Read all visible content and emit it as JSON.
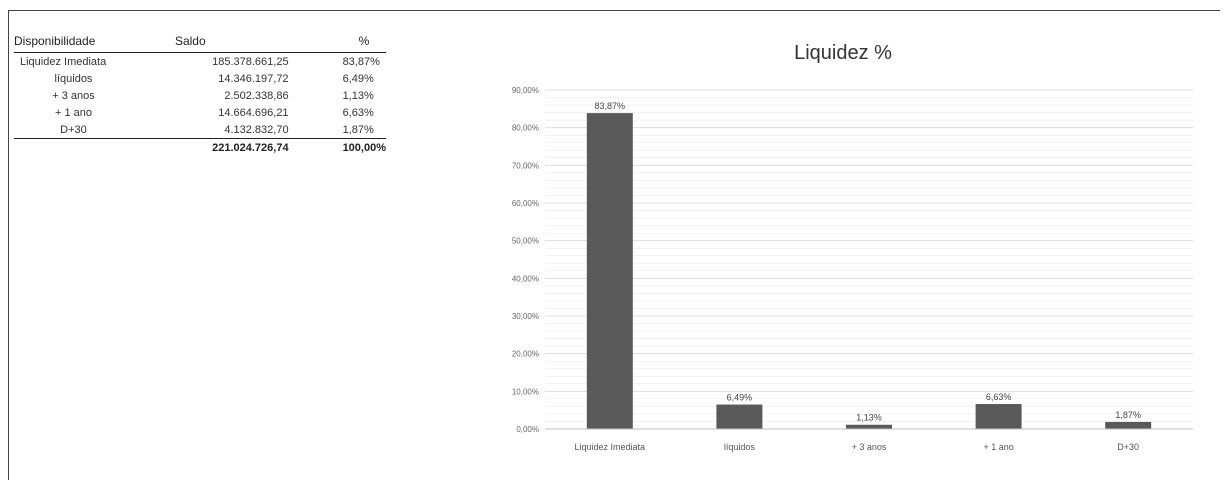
{
  "table": {
    "headers": [
      "Disponibilidade",
      "Saldo",
      "%"
    ],
    "rows": [
      [
        "Liquidez Imediata",
        "185.378.661,25",
        "83,87%"
      ],
      [
        "líquidos",
        "14.346.197,72",
        "6,49%"
      ],
      [
        "+ 3 anos",
        "2.502.338,86",
        "1,13%"
      ],
      [
        "+ 1 ano",
        "14.664.696,21",
        "6,63%"
      ],
      [
        "D+30",
        "4.132.832,70",
        "1,87%"
      ]
    ],
    "total": [
      "",
      "221.024.726,74",
      "100,00%"
    ]
  },
  "chart_data": {
    "type": "bar",
    "title": "Liquidez %",
    "categories": [
      "Liquidez Imediata",
      "líquidos",
      "+ 3 anos",
      "+ 1 ano",
      "D+30"
    ],
    "values": [
      83.87,
      6.49,
      1.13,
      6.63,
      1.87
    ],
    "data_labels": [
      "83,87%",
      "6,49%",
      "1,13%",
      "6,63%",
      "1,87%"
    ],
    "ylim": [
      0,
      90
    ],
    "yticks": [
      "0,00%",
      "10,00%",
      "20,00%",
      "30,00%",
      "40,00%",
      "50,00%",
      "60,00%",
      "70,00%",
      "80,00%",
      "90,00%"
    ],
    "grid": true,
    "bar_color": "#595959",
    "grid_color": "#e4e4e4"
  }
}
